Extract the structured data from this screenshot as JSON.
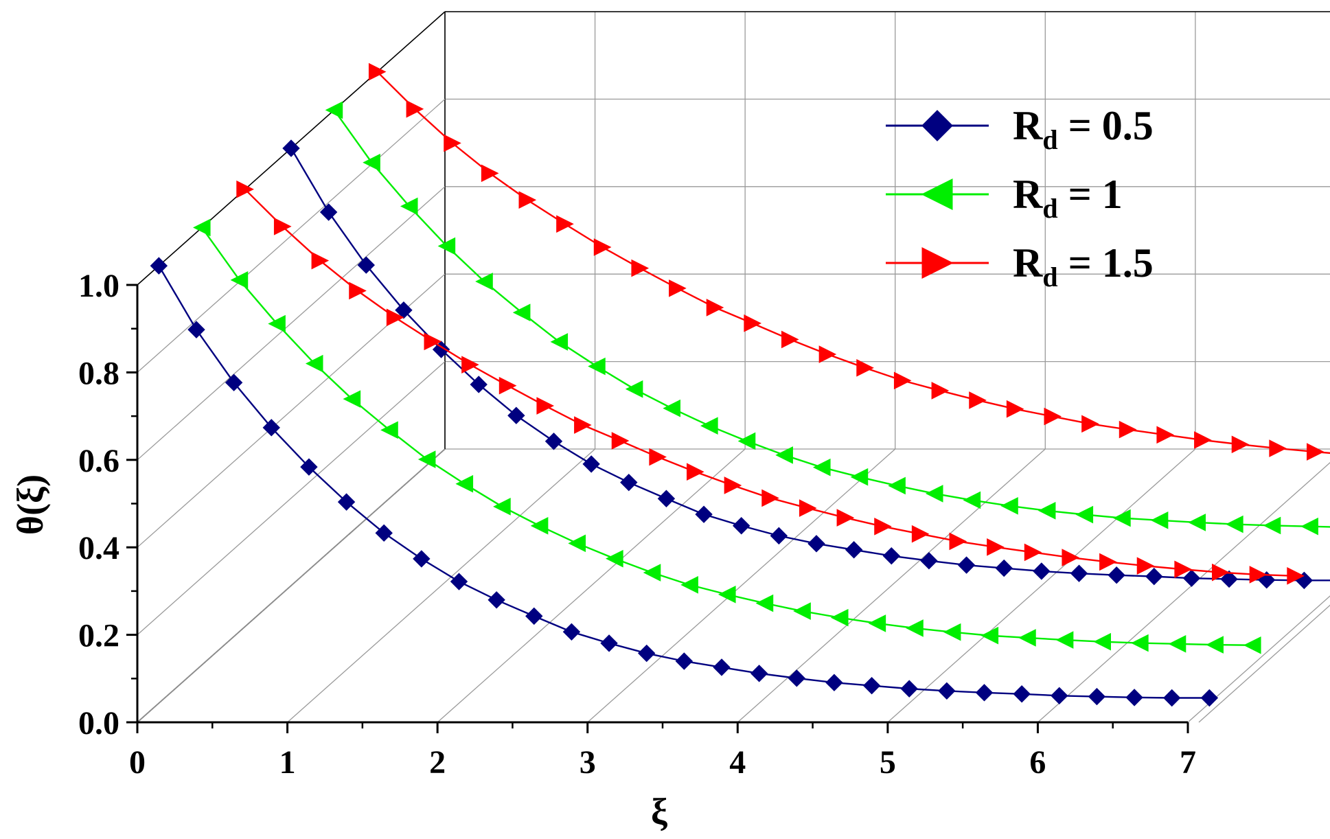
{
  "chart_data": {
    "type": "line",
    "projection": "3d-depth-offset",
    "xlabel": "ξ",
    "ylabel": "θ(ξ)",
    "xlim": [
      0,
      7
    ],
    "ylim": [
      0,
      1.0
    ],
    "x_ticks": [
      "0",
      "1",
      "2",
      "3",
      "4",
      "5",
      "6",
      "7"
    ],
    "y_ticks": [
      "0.0",
      "0.2",
      "0.4",
      "0.6",
      "0.8",
      "1.0"
    ],
    "grid": true,
    "legend_position": "top-right",
    "x": [
      0,
      0.25,
      0.5,
      0.75,
      1.0,
      1.25,
      1.5,
      1.75,
      2.0,
      2.25,
      2.5,
      2.75,
      3.0,
      3.25,
      3.5,
      3.75,
      4.0,
      4.25,
      4.5,
      4.75,
      5.0,
      5.25,
      5.5,
      5.75,
      6.0,
      6.25,
      6.5,
      6.75,
      7.0
    ],
    "series": [
      {
        "name": "R_d = 0.5",
        "color": "#000080",
        "marker": "diamond",
        "values": [
          1.0,
          0.854,
          0.733,
          0.63,
          0.54,
          0.46,
          0.389,
          0.33,
          0.278,
          0.236,
          0.199,
          0.163,
          0.137,
          0.114,
          0.096,
          0.082,
          0.068,
          0.057,
          0.047,
          0.04,
          0.033,
          0.028,
          0.024,
          0.021,
          0.017,
          0.015,
          0.013,
          0.012,
          0.012
        ]
      },
      {
        "name": "R_d = 1",
        "color": "#00ee00",
        "marker": "triangle-left",
        "values": [
          1.0,
          0.88,
          0.78,
          0.689,
          0.608,
          0.537,
          0.47,
          0.414,
          0.362,
          0.318,
          0.278,
          0.243,
          0.211,
          0.183,
          0.161,
          0.141,
          0.123,
          0.108,
          0.095,
          0.084,
          0.075,
          0.067,
          0.062,
          0.057,
          0.053,
          0.05,
          0.048,
          0.046,
          0.045
        ]
      },
      {
        "name": "R_d = 1.5",
        "color": "#ff0000",
        "marker": "triangle-right",
        "values": [
          1.0,
          0.915,
          0.837,
          0.768,
          0.707,
          0.652,
          0.599,
          0.551,
          0.505,
          0.461,
          0.425,
          0.388,
          0.354,
          0.323,
          0.294,
          0.271,
          0.249,
          0.229,
          0.212,
          0.195,
          0.182,
          0.17,
          0.158,
          0.148,
          0.139,
          0.131,
          0.124,
          0.119,
          0.116
        ]
      }
    ],
    "legend": [
      {
        "main": "R",
        "sub": "d",
        "rest": " = 0.5"
      },
      {
        "main": "R",
        "sub": "d",
        "rest": " = 1"
      },
      {
        "main": "R",
        "sub": "d",
        "rest": " = 1.5"
      }
    ]
  }
}
